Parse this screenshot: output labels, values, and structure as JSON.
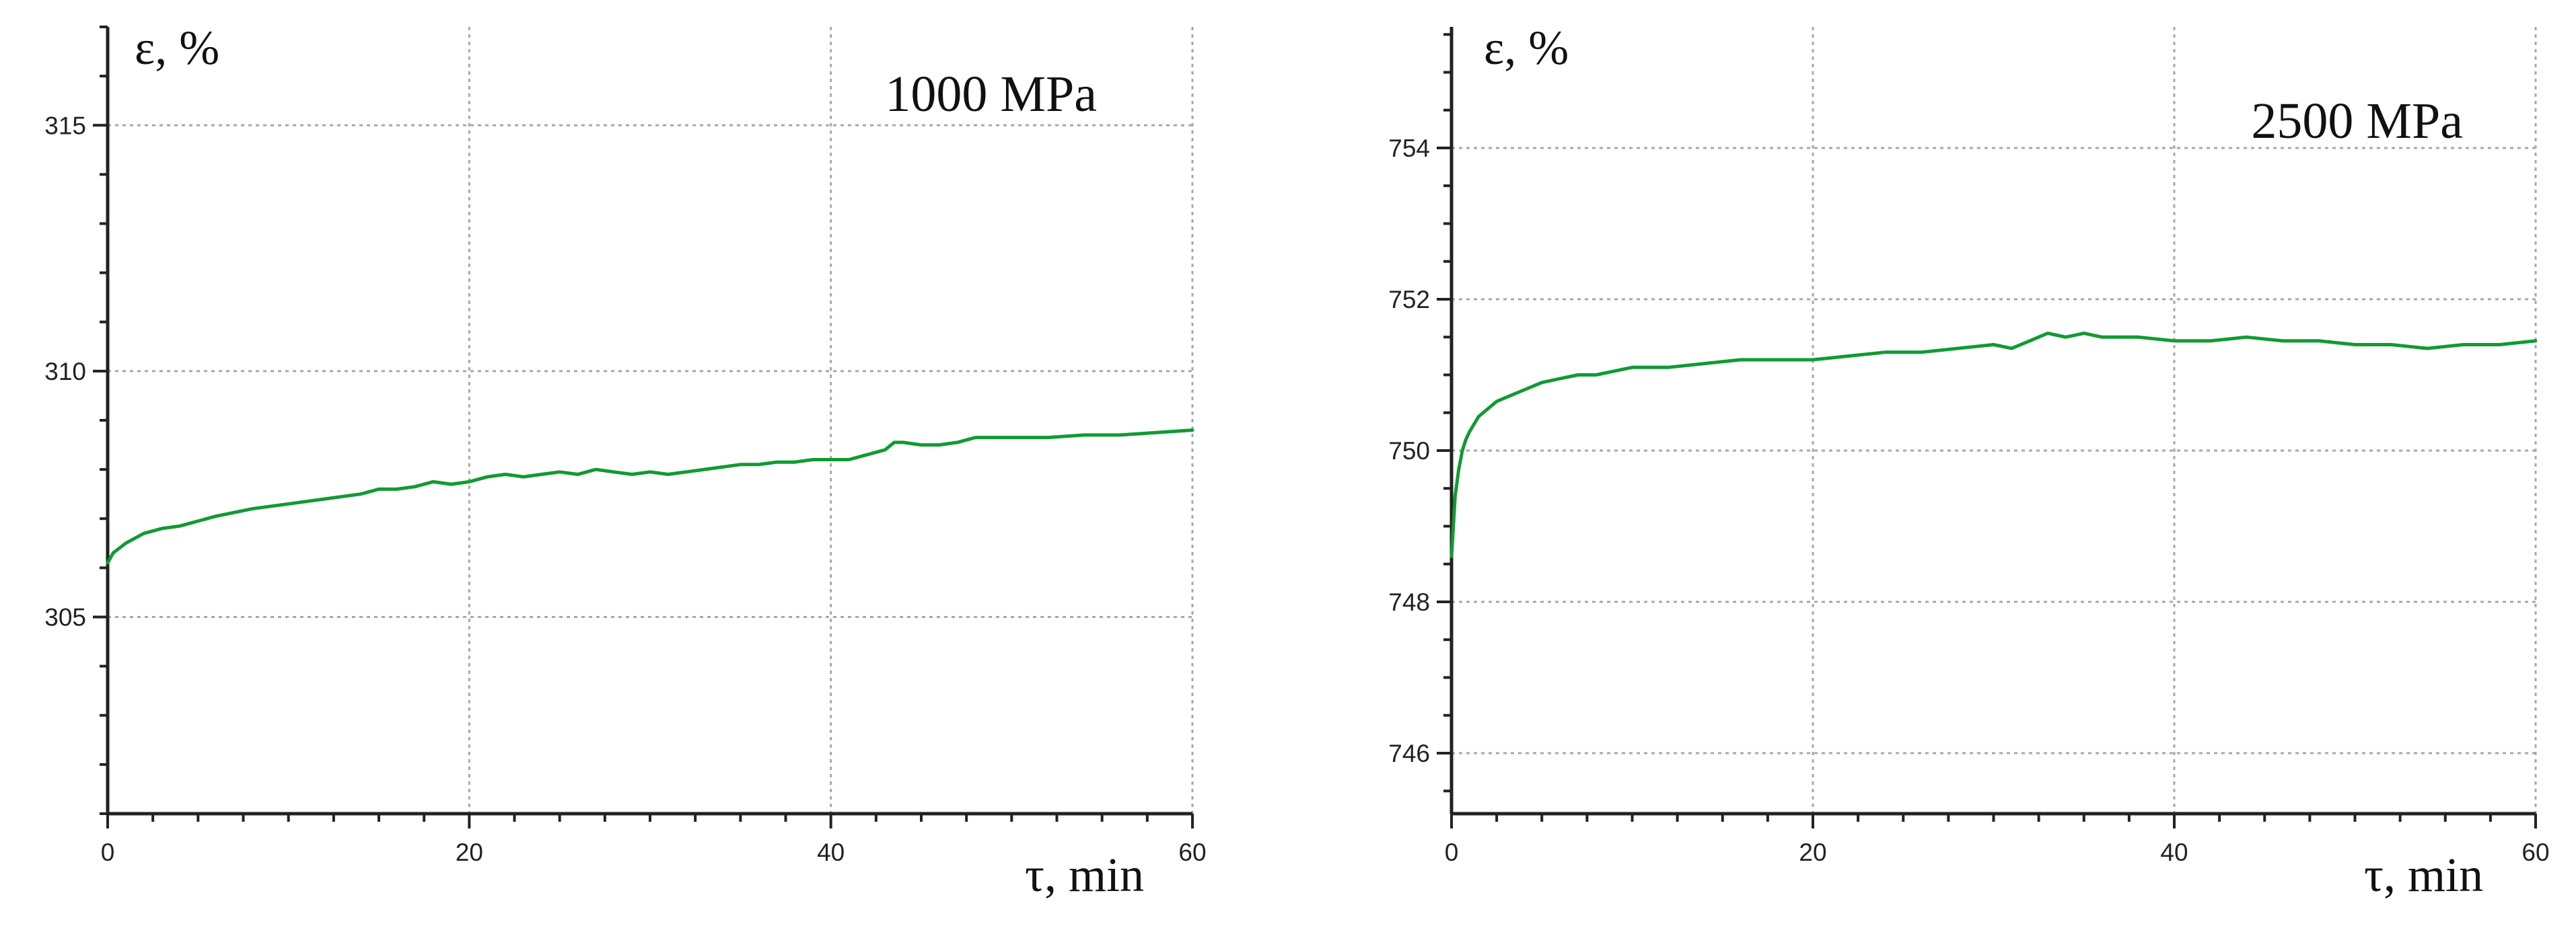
{
  "chart_data": [
    {
      "type": "line",
      "title": "",
      "annotation": "1000 MPa",
      "xlabel": "τ, min",
      "ylabel": "ε, %",
      "xlim": [
        0,
        60
      ],
      "ylim": [
        301,
        317
      ],
      "xticks": [
        0,
        20,
        40,
        60
      ],
      "yticks": [
        305,
        310,
        315
      ],
      "minor_xstep": 2.5,
      "minor_ystep": 1,
      "grid": true,
      "colors": {
        "series": "#119a33",
        "axis": "#222222",
        "grid": "#a8a8a8"
      },
      "series": [
        {
          "x": [
            0,
            0.3,
            1,
            2,
            3,
            4,
            5,
            6,
            8,
            10,
            12,
            14,
            15,
            16,
            17,
            18,
            19,
            20,
            21,
            22,
            23,
            24,
            25,
            26,
            27,
            28,
            29,
            30,
            31,
            32,
            33,
            34,
            35,
            36,
            37,
            38,
            39,
            40,
            41,
            42,
            43,
            43.5,
            44,
            45,
            46,
            47,
            48,
            50,
            52,
            54,
            56,
            58,
            60
          ],
          "y": [
            306.1,
            306.3,
            306.5,
            306.7,
            306.8,
            306.85,
            306.95,
            307.05,
            307.2,
            307.3,
            307.4,
            307.5,
            307.6,
            307.6,
            307.65,
            307.75,
            307.7,
            307.75,
            307.85,
            307.9,
            307.85,
            307.9,
            307.95,
            307.9,
            308.0,
            307.95,
            307.9,
            307.95,
            307.9,
            307.95,
            308.0,
            308.05,
            308.1,
            308.1,
            308.15,
            308.15,
            308.2,
            308.2,
            308.2,
            308.3,
            308.4,
            308.55,
            308.55,
            308.5,
            308.5,
            308.55,
            308.65,
            308.65,
            308.65,
            308.7,
            308.7,
            308.75,
            308.8
          ]
        }
      ]
    },
    {
      "type": "line",
      "title": "",
      "annotation": "2500 MPa",
      "xlabel": "τ, min",
      "ylabel": "ε, %",
      "xlim": [
        0,
        60
      ],
      "ylim": [
        745.2,
        755.6
      ],
      "xticks": [
        0,
        20,
        40,
        60
      ],
      "yticks": [
        746,
        748,
        750,
        752,
        754
      ],
      "minor_xstep": 2.5,
      "minor_ystep": 0.5,
      "grid": true,
      "colors": {
        "series": "#119a33",
        "axis": "#222222",
        "grid": "#a8a8a8"
      },
      "series": [
        {
          "x": [
            0,
            0.1,
            0.2,
            0.4,
            0.6,
            0.8,
            1,
            1.5,
            2,
            2.5,
            3,
            4,
            5,
            6,
            7,
            8,
            9,
            10,
            12,
            14,
            16,
            18,
            20,
            22,
            24,
            26,
            28,
            30,
            31,
            32,
            33,
            34,
            35,
            36,
            38,
            40,
            42,
            44,
            46,
            48,
            50,
            52,
            54,
            56,
            58,
            60
          ],
          "y": [
            748.6,
            749.0,
            749.4,
            749.75,
            750.0,
            750.15,
            750.25,
            750.45,
            750.55,
            750.65,
            750.7,
            750.8,
            750.9,
            750.95,
            751.0,
            751.0,
            751.05,
            751.1,
            751.1,
            751.15,
            751.2,
            751.2,
            751.2,
            751.25,
            751.3,
            751.3,
            751.35,
            751.4,
            751.35,
            751.45,
            751.55,
            751.5,
            751.55,
            751.5,
            751.5,
            751.45,
            751.45,
            751.5,
            751.45,
            751.45,
            751.4,
            751.4,
            751.35,
            751.4,
            751.4,
            751.45
          ]
        }
      ]
    }
  ]
}
